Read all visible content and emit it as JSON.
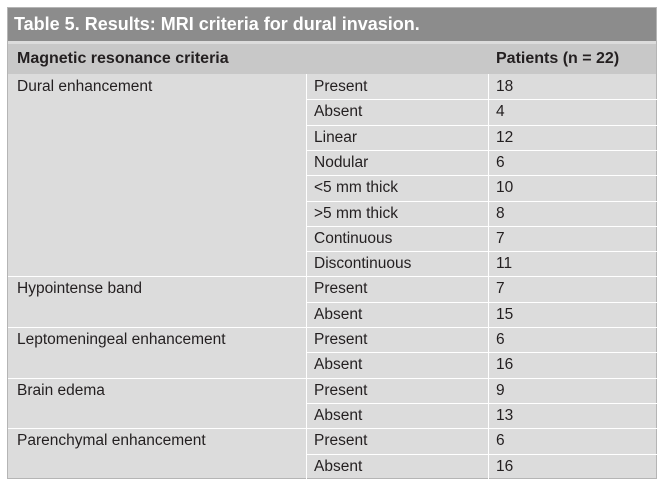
{
  "title": "Table 5. Results: MRI criteria for dural invasion.",
  "header": {
    "col1": "Magnetic resonance criteria",
    "col3": "Patients (n = 22)"
  },
  "rows": [
    {
      "group": "Dural enhancement",
      "sub": "Present",
      "value": "18"
    },
    {
      "group": "",
      "sub": "Absent",
      "value": "4"
    },
    {
      "group": "",
      "sub": "Linear",
      "value": "12"
    },
    {
      "group": "",
      "sub": "Nodular",
      "value": "6"
    },
    {
      "group": "",
      "sub": "<5 mm thick",
      "value": "10"
    },
    {
      "group": "",
      "sub": ">5 mm thick",
      "value": "8"
    },
    {
      "group": "",
      "sub": "Continuous",
      "value": "7"
    },
    {
      "group": "",
      "sub": "Discontinuous",
      "value": "11"
    },
    {
      "group": "Hypointense band",
      "sub": "Present",
      "value": "7"
    },
    {
      "group": "",
      "sub": "Absent",
      "value": "15"
    },
    {
      "group": "Leptomeningeal enhancement",
      "sub": "Present",
      "value": "6"
    },
    {
      "group": "",
      "sub": "Absent",
      "value": "16"
    },
    {
      "group": "Brain edema",
      "sub": "Present",
      "value": "9"
    },
    {
      "group": "",
      "sub": "Absent",
      "value": "13"
    },
    {
      "group": "Parenchymal enhancement",
      "sub": "Present",
      "value": "6"
    },
    {
      "group": "",
      "sub": "Absent",
      "value": "16"
    }
  ]
}
